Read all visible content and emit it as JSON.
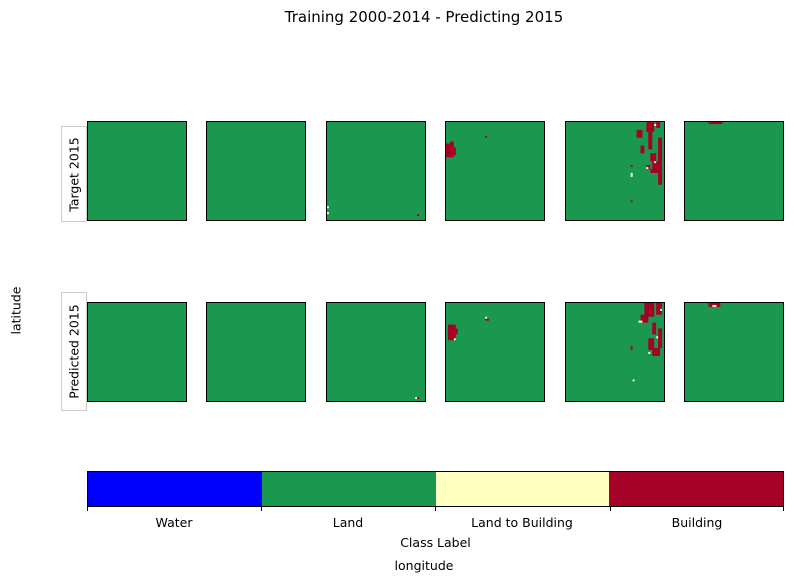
{
  "title": "Training 2000-2014 - Predicting 2015",
  "row_labels": [
    "Target 2015",
    "Predicted 2015"
  ],
  "ylabel": "latitude",
  "xlabel": "longitude",
  "colorbar": {
    "label": "Class Label",
    "classes": [
      {
        "name": "Water",
        "color": "#0000ff"
      },
      {
        "name": "Land",
        "color": "#1a9850"
      },
      {
        "name": "Land to Building",
        "color": "#ffffbf"
      },
      {
        "name": "Building",
        "color": "#a50026"
      }
    ]
  },
  "chart_data": {
    "type": "heatmap",
    "title": "Training 2000-2014 - Predicting 2015",
    "xlabel": "longitude",
    "ylabel": "latitude",
    "rows": [
      "Target 2015",
      "Predicted 2015"
    ],
    "panels_per_row": 6,
    "categories": [
      "Water",
      "Land",
      "Land to Building",
      "Building"
    ],
    "colorbar_label": "Class Label",
    "grid_size": 50,
    "panels": [
      {
        "row": 0,
        "col": 0,
        "dominant_class": "Land",
        "cells": []
      },
      {
        "row": 0,
        "col": 1,
        "dominant_class": "Land",
        "cells": []
      },
      {
        "row": 0,
        "col": 2,
        "dominant_class": "Land",
        "cells": [
          {
            "r": 43,
            "c": 0,
            "class": "Land to Building"
          },
          {
            "r": 46,
            "c": 0,
            "class": "Land to Building"
          },
          {
            "r": 47,
            "c": 46,
            "class": "Building"
          }
        ]
      },
      {
        "row": 0,
        "col": 3,
        "dominant_class": "Land",
        "cells": [
          {
            "r": 10,
            "c": 2,
            "w": 2,
            "h": 2,
            "class": "Building"
          },
          {
            "r": 11,
            "c": 0,
            "w": 4,
            "h": 7,
            "class": "Building"
          },
          {
            "r": 13,
            "c": 4,
            "w": 1,
            "h": 4,
            "class": "Building"
          },
          {
            "r": 7,
            "c": 20,
            "w": 1,
            "h": 1,
            "class": "Building"
          }
        ]
      },
      {
        "row": 0,
        "col": 4,
        "dominant_class": "Land",
        "cells": [
          {
            "r": 0,
            "c": 41,
            "w": 4,
            "h": 5,
            "class": "Building"
          },
          {
            "r": 0,
            "c": 46,
            "w": 2,
            "h": 3,
            "class": "Building"
          },
          {
            "r": 4,
            "c": 36,
            "w": 3,
            "h": 4,
            "class": "Building"
          },
          {
            "r": 5,
            "c": 42,
            "w": 2,
            "h": 9,
            "class": "Building"
          },
          {
            "r": 8,
            "c": 47,
            "w": 2,
            "h": 24,
            "class": "Building"
          },
          {
            "r": 12,
            "c": 38,
            "w": 2,
            "h": 4,
            "class": "Building"
          },
          {
            "r": 16,
            "c": 43,
            "w": 3,
            "h": 4,
            "class": "Building"
          },
          {
            "r": 20,
            "c": 44,
            "w": 4,
            "h": 5,
            "class": "Building"
          },
          {
            "r": 22,
            "c": 41,
            "w": 2,
            "h": 2,
            "class": "Building"
          },
          {
            "r": 24,
            "c": 43,
            "w": 4,
            "h": 2,
            "class": "Building"
          },
          {
            "r": 22,
            "c": 33,
            "w": 1,
            "h": 1,
            "class": "Building"
          },
          {
            "r": 26,
            "c": 33,
            "w": 1,
            "h": 2,
            "class": "Land to Building"
          },
          {
            "r": 20,
            "c": 45,
            "w": 1,
            "h": 1,
            "class": "Land to Building"
          },
          {
            "r": 23,
            "c": 41,
            "w": 1,
            "h": 1,
            "class": "Land to Building"
          },
          {
            "r": 1,
            "c": 45,
            "w": 1,
            "h": 1,
            "class": "Land to Building"
          },
          {
            "r": 40,
            "c": 33,
            "w": 1,
            "h": 1,
            "class": "Building"
          }
        ]
      },
      {
        "row": 0,
        "col": 5,
        "dominant_class": "Land",
        "cells": [
          {
            "r": 0,
            "c": 12,
            "w": 7,
            "h": 1,
            "class": "Building"
          }
        ]
      },
      {
        "row": 1,
        "col": 0,
        "dominant_class": "Land",
        "cells": []
      },
      {
        "row": 1,
        "col": 1,
        "dominant_class": "Land",
        "cells": []
      },
      {
        "row": 1,
        "col": 2,
        "dominant_class": "Land",
        "cells": [
          {
            "r": 48,
            "c": 45,
            "w": 1,
            "h": 1,
            "class": "Land to Building"
          },
          {
            "r": 48,
            "c": 46,
            "w": 1,
            "h": 1,
            "class": "Building"
          }
        ]
      },
      {
        "row": 1,
        "col": 3,
        "dominant_class": "Land",
        "cells": [
          {
            "r": 11,
            "c": 1,
            "w": 4,
            "h": 8,
            "class": "Building"
          },
          {
            "r": 13,
            "c": 5,
            "w": 1,
            "h": 3,
            "class": "Building"
          },
          {
            "r": 8,
            "c": 20,
            "w": 2,
            "h": 1,
            "class": "Building"
          },
          {
            "r": 7,
            "c": 20,
            "w": 1,
            "h": 1,
            "class": "Land to Building"
          },
          {
            "r": 18,
            "c": 4,
            "w": 1,
            "h": 1,
            "class": "Land to Building"
          }
        ]
      },
      {
        "row": 1,
        "col": 4,
        "dominant_class": "Land",
        "cells": [
          {
            "r": 0,
            "c": 40,
            "w": 5,
            "h": 7,
            "class": "Building"
          },
          {
            "r": 0,
            "c": 46,
            "w": 3,
            "h": 6,
            "class": "Building"
          },
          {
            "r": 6,
            "c": 38,
            "w": 4,
            "h": 4,
            "class": "Building"
          },
          {
            "r": 10,
            "c": 44,
            "w": 2,
            "h": 6,
            "class": "Building"
          },
          {
            "r": 13,
            "c": 47,
            "w": 2,
            "h": 10,
            "class": "Building"
          },
          {
            "r": 18,
            "c": 42,
            "w": 3,
            "h": 6,
            "class": "Building"
          },
          {
            "r": 23,
            "c": 44,
            "w": 4,
            "h": 4,
            "class": "Building"
          },
          {
            "r": 22,
            "c": 33,
            "w": 1,
            "h": 2,
            "class": "Building"
          },
          {
            "r": 9,
            "c": 37,
            "w": 2,
            "h": 1,
            "class": "Land to Building"
          },
          {
            "r": 17,
            "c": 46,
            "w": 1,
            "h": 1,
            "class": "Land to Building"
          },
          {
            "r": 25,
            "c": 42,
            "w": 1,
            "h": 1,
            "class": "Land to Building"
          },
          {
            "r": 3,
            "c": 48,
            "w": 1,
            "h": 1,
            "class": "Land to Building"
          },
          {
            "r": 39,
            "c": 34,
            "w": 1,
            "h": 1,
            "class": "Land to Building"
          }
        ]
      },
      {
        "row": 1,
        "col": 5,
        "dominant_class": "Land",
        "cells": [
          {
            "r": 0,
            "c": 12,
            "w": 6,
            "h": 2,
            "class": "Building"
          },
          {
            "r": 1,
            "c": 14,
            "w": 2,
            "h": 1,
            "class": "Land to Building"
          }
        ]
      }
    ]
  }
}
